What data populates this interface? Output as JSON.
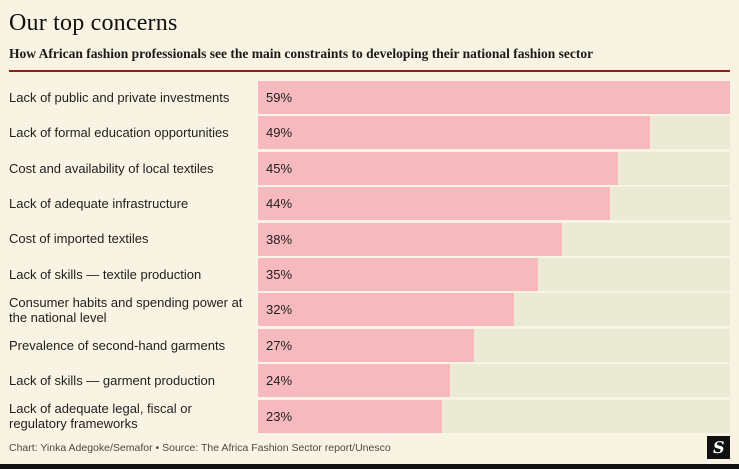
{
  "header": {
    "title": "Our top concerns",
    "subtitle": "How African fashion professionals see the main constraints to developing their national fashion sector"
  },
  "chart_data": {
    "type": "bar",
    "orientation": "horizontal",
    "title": "Our top concerns",
    "subtitle": "How African fashion professionals see the main constraints to developing their national fashion sector",
    "categories": [
      "Lack of public and private investments",
      "Lack of formal education opportunities",
      "Cost and availability of local textiles",
      "Lack of adequate infrastructure",
      "Cost of imported textiles",
      "Lack of skills — textile production",
      "Consumer habits and spending power at the national level",
      "Prevalence of second-hand garments",
      "Lack of skills — garment production",
      "Lack of adequate legal, fiscal or regulatory frameworks"
    ],
    "values": [
      59,
      49,
      45,
      44,
      38,
      35,
      32,
      27,
      24,
      23
    ],
    "value_labels": [
      "59%",
      "49%",
      "45%",
      "44%",
      "38%",
      "35%",
      "32%",
      "27%",
      "24%",
      "23%"
    ],
    "unit": "%",
    "xmax": 59,
    "xlabel": "",
    "ylabel": "",
    "grid": false,
    "legend": false
  },
  "colors": {
    "background": "#f8f3e2",
    "bar": "#f6b9be",
    "track": "#eaead5",
    "accent_rule": "#8e1f1b",
    "logo_background": "#111111",
    "logo_foreground": "#ffffff"
  },
  "footer": {
    "credit": "Chart: Yinka Adegoke/Semafor • Source: The Africa Fashion Sector report/Unesco",
    "logo_letter": "S"
  }
}
